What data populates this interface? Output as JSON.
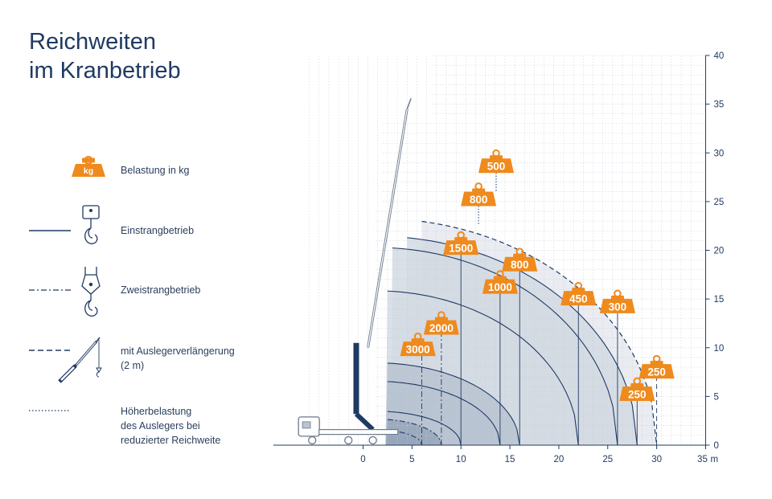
{
  "title": [
    "Reichweiten",
    "im Kranbetrieb"
  ],
  "legend": {
    "load": {
      "badge": "kg",
      "label": "Belastung in kg"
    },
    "single": {
      "label": "Einstrangbetrieb"
    },
    "double": {
      "label": "Zweistrangbetrieb"
    },
    "extension": {
      "label_lines": [
        "mit Auslegerverlängerung",
        "(2 m)"
      ]
    },
    "overload": {
      "label_lines": [
        "Höherbelastung",
        "des Auslegers bei",
        "reduzierter Reichweite"
      ]
    }
  },
  "colors": {
    "navy": "#1f3a63",
    "orange": "#ef8a1d",
    "grid": "#c4ccd8",
    "zone_outer": "#e6e9ee",
    "zone_mid": "#d4dae3",
    "zone_inner": "#b9c3d1",
    "zone_core": "#97a6bb"
  },
  "chart_data": {
    "type": "line",
    "xlabel": "m",
    "xlim": [
      -9,
      35
    ],
    "ylim": [
      0,
      40
    ],
    "x_ticks": [
      0,
      5,
      10,
      15,
      20,
      25,
      30,
      35
    ],
    "y_ticks": [
      0,
      5,
      10,
      15,
      20,
      25,
      30,
      35,
      40
    ],
    "pivot": {
      "x": 1.3,
      "y": 0
    },
    "curves": [
      {
        "mode": "extension",
        "start": [
          6,
          34.9
        ],
        "reach": 30,
        "load": 250,
        "label_at": [
          30,
          7.5
        ]
      },
      {
        "mode": "single",
        "start": [
          4.5,
          33
        ],
        "reach": 28,
        "load": 250,
        "label_at": [
          28,
          5.2
        ]
      },
      {
        "mode": "single",
        "start": [
          3,
          30
        ],
        "reach": 26,
        "load": 300,
        "label_at": [
          26,
          14.2
        ]
      },
      {
        "mode": "single",
        "start": [
          2.5,
          27
        ],
        "reach": 22,
        "load": 450,
        "label_at": [
          22,
          15
        ]
      },
      {
        "mode": "single",
        "start": [
          2.5,
          25.5
        ],
        "reach": 16,
        "load": 800,
        "label_at": [
          16,
          18.5
        ]
      },
      {
        "mode": "single",
        "start": [
          2.5,
          24.5
        ],
        "reach": 14,
        "load": 1000,
        "label_at": [
          14,
          16.2
        ]
      },
      {
        "mode": "single",
        "start": [
          2.5,
          21.5
        ],
        "reach": 10,
        "load": 1500,
        "label_at": [
          10,
          20.2
        ]
      },
      {
        "mode": "double",
        "start": [
          2.5,
          16.5
        ],
        "reach": 8,
        "load": 2000,
        "label_at": [
          8,
          12
        ]
      },
      {
        "mode": "double",
        "start": [
          2.5,
          13.5
        ],
        "reach": 6,
        "load": 3000,
        "label_at": [
          5.6,
          9.8
        ]
      }
    ],
    "overload_labels": [
      {
        "load": 500,
        "at": [
          13.6,
          28.6
        ]
      },
      {
        "load": 800,
        "at": [
          11.8,
          25.2
        ]
      }
    ]
  }
}
